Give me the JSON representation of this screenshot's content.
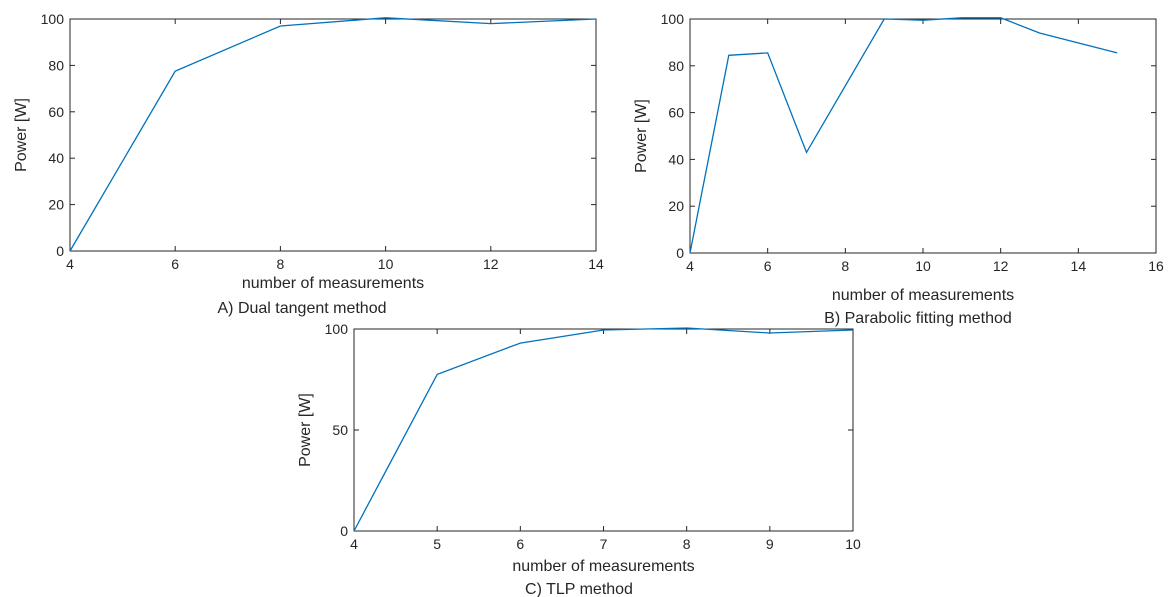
{
  "chart_data": [
    {
      "type": "line",
      "caption": "A) Dual tangent method",
      "xlabel": "number of measurements",
      "ylabel": "Power [W]",
      "xlim": [
        4,
        14
      ],
      "ylim": [
        0,
        100
      ],
      "xticks": [
        4,
        6,
        8,
        10,
        12,
        14
      ],
      "yticks": [
        0,
        20,
        40,
        60,
        80,
        100
      ],
      "grid": false,
      "series": [
        {
          "x": [
            4,
            6,
            8,
            10,
            12,
            14
          ],
          "y": [
            0,
            77.5,
            97,
            100.5,
            98,
            100
          ]
        }
      ]
    },
    {
      "type": "line",
      "caption": "B) Parabolic fitting method",
      "xlabel": "number of measurements",
      "ylabel": "Power [W]",
      "xlim": [
        4,
        16
      ],
      "ylim": [
        0,
        100
      ],
      "xticks": [
        4,
        6,
        8,
        10,
        12,
        14,
        16
      ],
      "yticks": [
        0,
        20,
        40,
        60,
        80,
        100
      ],
      "grid": false,
      "series": [
        {
          "x": [
            4,
            5,
            6,
            7,
            9,
            10,
            11,
            12,
            13,
            15
          ],
          "y": [
            0,
            84.5,
            85.5,
            43,
            100,
            99.5,
            100.5,
            100.5,
            94,
            85.5
          ]
        }
      ]
    },
    {
      "type": "line",
      "caption": "C) TLP method",
      "xlabel": "number of measurements",
      "ylabel": "Power [W]",
      "xlim": [
        4,
        10
      ],
      "ylim": [
        0,
        100
      ],
      "xticks": [
        4,
        5,
        6,
        7,
        8,
        9,
        10
      ],
      "yticks": [
        0,
        50,
        100
      ],
      "grid": false,
      "series": [
        {
          "x": [
            4,
            5,
            6,
            7,
            8,
            9,
            10
          ],
          "y": [
            0,
            77.5,
            93,
            99.5,
            100.5,
            98,
            99.5
          ]
        }
      ]
    }
  ],
  "colors": {
    "line": "#0072BD",
    "axes": "#262626"
  }
}
